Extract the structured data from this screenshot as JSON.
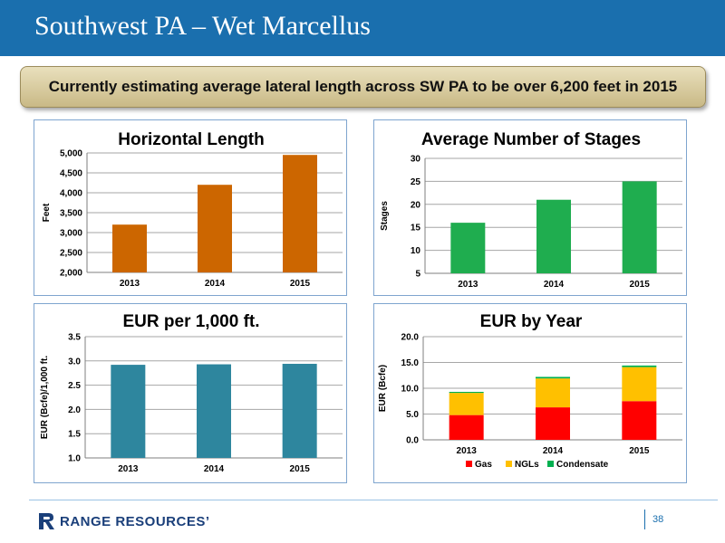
{
  "header": {
    "title": "Southwest PA – Wet Marcellus"
  },
  "banner": {
    "text": "Currently estimating average lateral length across SW PA to be over 6,200 feet in 2015"
  },
  "footer": {
    "logo_text": "RANGE RESOURCES’",
    "page_number": "38"
  },
  "colors": {
    "header": "#1a6fae",
    "horizontal_length": "#cc6600",
    "stages": "#1fad4f",
    "eur_per_1000": "#2e869e",
    "gas": "#ff0000",
    "ngls": "#ffc000",
    "condensate": "#00b050"
  },
  "chart_data": [
    {
      "type": "bar",
      "title": "Horizontal Length",
      "ylabel": "Feet",
      "xlabel": "",
      "categories": [
        "2013",
        "2014",
        "2015"
      ],
      "values": [
        3200,
        4200,
        4950
      ],
      "ylim": [
        2000,
        5000
      ],
      "yticks": [
        2000,
        2500,
        3000,
        3500,
        4000,
        4500,
        5000
      ],
      "ytick_labels": [
        "2,000",
        "2,500",
        "3,000",
        "3,500",
        "4,000",
        "4,500",
        "5,000"
      ],
      "grid": true
    },
    {
      "type": "bar",
      "title": "Average Number of Stages",
      "ylabel": "Stages",
      "xlabel": "",
      "categories": [
        "2013",
        "2014",
        "2015"
      ],
      "values": [
        16,
        21,
        25
      ],
      "ylim": [
        5,
        30
      ],
      "yticks": [
        5,
        10,
        15,
        20,
        25,
        30
      ],
      "ytick_labels": [
        "5",
        "10",
        "15",
        "20",
        "25",
        "30"
      ],
      "grid": true
    },
    {
      "type": "bar",
      "title": "EUR per 1,000 ft.",
      "ylabel": "EUR (Bcfe)/1,000 ft.",
      "xlabel": "",
      "categories": [
        "2013",
        "2014",
        "2015"
      ],
      "values": [
        2.92,
        2.93,
        2.94
      ],
      "ylim": [
        1.0,
        3.5
      ],
      "yticks": [
        1.0,
        1.5,
        2.0,
        2.5,
        3.0,
        3.5
      ],
      "ytick_labels": [
        "1.0",
        "1.5",
        "2.0",
        "2.5",
        "3.0",
        "3.5"
      ],
      "grid": true
    },
    {
      "type": "bar",
      "stacked": true,
      "title": "EUR by Year",
      "ylabel": "EUR (Bcfe)",
      "xlabel": "",
      "categories": [
        "2013",
        "2014",
        "2015"
      ],
      "series": [
        {
          "name": "Gas",
          "values": [
            4.8,
            6.3,
            7.5
          ]
        },
        {
          "name": "NGLs",
          "values": [
            4.3,
            5.6,
            6.6
          ]
        },
        {
          "name": "Condensate",
          "values": [
            0.2,
            0.3,
            0.3
          ]
        }
      ],
      "ylim": [
        0,
        20
      ],
      "yticks": [
        0,
        5,
        10,
        15,
        20
      ],
      "ytick_labels": [
        "0.0",
        "5.0",
        "10.0",
        "15.0",
        "20.0"
      ],
      "legend": "bottom",
      "grid": true
    }
  ]
}
